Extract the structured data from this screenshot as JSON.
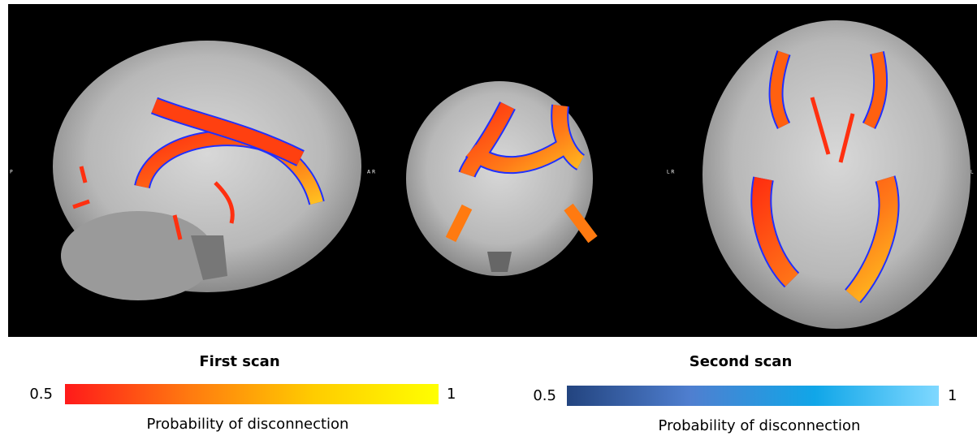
{
  "figure": {
    "orientation_labels": [
      "P",
      "A R",
      "L R",
      "L"
    ],
    "colorbars": [
      {
        "title": "First scan",
        "min": 0.5,
        "max": 1,
        "label": "Probability of disconnection",
        "colors": [
          "#ff1a1a",
          "#ff7a10",
          "#ffcc00",
          "#ffff00"
        ]
      },
      {
        "title": "Second scan",
        "min": 0.5,
        "max": 1,
        "label": "Probability of disconnection",
        "colors": [
          "#23447f",
          "#4f7fd0",
          "#10a6e8",
          "#7fd8ff"
        ]
      }
    ]
  }
}
